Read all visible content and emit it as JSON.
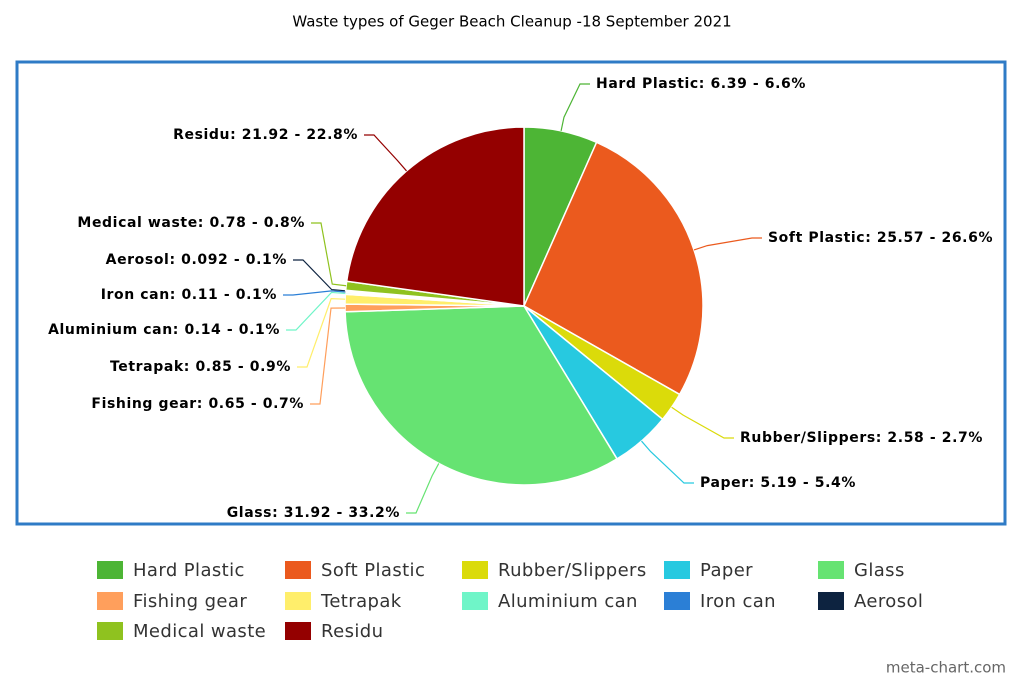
{
  "chart_data": {
    "type": "pie",
    "title": "Waste types of Geger Beach Cleanup -18 September 2021",
    "categories": [
      "Hard Plastic",
      "Soft Plastic",
      "Rubber/Slippers",
      "Paper",
      "Glass",
      "Fishing gear",
      "Tetrapak",
      "Aluminium can",
      "Iron can",
      "Aerosol",
      "Medical waste",
      "Residu"
    ],
    "values": [
      6.39,
      25.57,
      2.58,
      5.19,
      31.92,
      0.65,
      0.85,
      0.14,
      0.11,
      0.092,
      0.78,
      21.92
    ],
    "value_labels": [
      "Hard Plastic: 6.39 - 6.6%",
      "Soft Plastic: 25.57 - 26.6%",
      "Rubber/Slippers: 2.58 - 2.7%",
      "Paper: 5.19 - 5.4%",
      "Glass: 31.92 - 33.2%",
      "Fishing gear: 0.65 - 0.7%",
      "Tetrapak: 0.85 - 0.9%",
      "Aluminium can: 0.14 - 0.1%",
      "Iron can: 0.11 - 0.1%",
      "Aerosol: 0.092 - 0.1%",
      "Medical waste: 0.78 - 0.8%",
      "Residu: 21.92 - 22.8%"
    ],
    "colors": [
      "#4db535",
      "#eb5a1e",
      "#dbdb0a",
      "#27c9e0",
      "#66e372",
      "#ff9f5c",
      "#ffee6b",
      "#6ff5c8",
      "#2b7fd6",
      "#0d2340",
      "#8fc21f",
      "#940000"
    ],
    "legend": "bottom",
    "source": "meta-chart.com"
  }
}
